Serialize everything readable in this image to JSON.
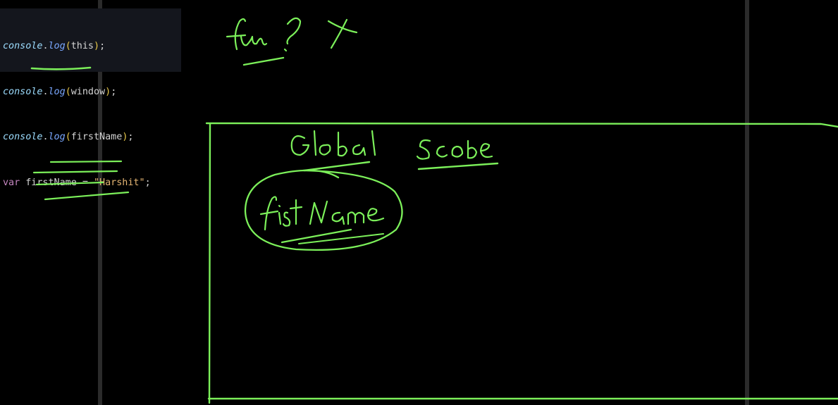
{
  "code": {
    "lines": [
      {
        "obj": "console",
        "dot": ".",
        "method": "log",
        "open": "(",
        "arg": "this",
        "close": ")",
        "end": ";"
      },
      {
        "obj": "console",
        "dot": ".",
        "method": "log",
        "open": "(",
        "arg": "window",
        "close": ")",
        "end": ";"
      },
      {
        "obj": "console",
        "dot": ".",
        "method": "log",
        "open": "(",
        "arg": "firstName",
        "close": ")",
        "end": ";"
      }
    ],
    "declaration": {
      "keyword": "var",
      "name": "firstName",
      "op": "=",
      "value": "\"Harshit\"",
      "end": ";"
    }
  },
  "colors": {
    "ink": "#7cf05a",
    "background": "#000000",
    "code_background": "#14161d"
  }
}
